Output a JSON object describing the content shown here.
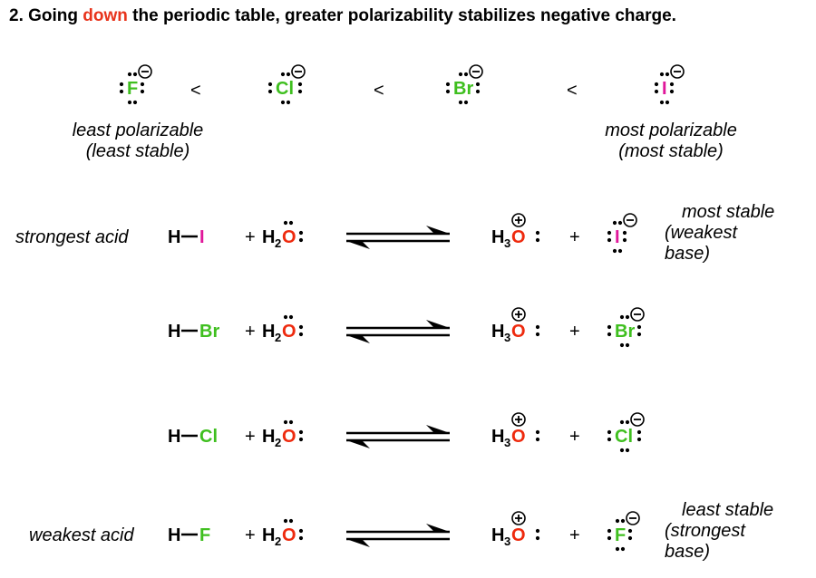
{
  "title": {
    "prefix": "2. Going ",
    "highlight": "down",
    "suffix": " the periodic table, greater polarizability stabilizes negative charge."
  },
  "colors": {
    "highlight": "#e8341c",
    "halogen": "#3fbf1f",
    "iodine": "#e0179a",
    "oxygen": "#ee2a0e",
    "ink": "#000000"
  },
  "anion_series": {
    "anions": [
      {
        "symbol": "F",
        "color_key": "halogen"
      },
      {
        "symbol": "Cl",
        "color_key": "halogen"
      },
      {
        "symbol": "Br",
        "color_key": "halogen"
      },
      {
        "symbol": "I",
        "color_key": "iodine"
      }
    ],
    "less_than": "<",
    "left_caption": [
      "least polarizable",
      "(least stable)"
    ],
    "right_caption": [
      "most polarizable",
      "(most stable)"
    ]
  },
  "reactions": [
    {
      "left_label": "strongest acid",
      "acid_h": "H",
      "halogen": "I",
      "color_key": "iodine",
      "plus1": "+",
      "water_h": "H",
      "water_sub": "2",
      "water_o": "O",
      "hydronium_h": "H",
      "hydronium_sub": "3",
      "hydronium_o": "O",
      "plus2": "+",
      "right_label": [
        "most stable",
        "(weakest",
        "base)"
      ]
    },
    {
      "left_label": "",
      "acid_h": "H",
      "halogen": "Br",
      "color_key": "halogen",
      "plus1": "+",
      "water_h": "H",
      "water_sub": "2",
      "water_o": "O",
      "hydronium_h": "H",
      "hydronium_sub": "3",
      "hydronium_o": "O",
      "plus2": "+",
      "right_label": []
    },
    {
      "left_label": "",
      "acid_h": "H",
      "halogen": "Cl",
      "color_key": "halogen",
      "plus1": "+",
      "water_h": "H",
      "water_sub": "2",
      "water_o": "O",
      "hydronium_h": "H",
      "hydronium_sub": "3",
      "hydronium_o": "O",
      "plus2": "+",
      "right_label": []
    },
    {
      "left_label": "weakest acid",
      "acid_h": "H",
      "halogen": "F",
      "color_key": "halogen",
      "plus1": "+",
      "water_h": "H",
      "water_sub": "2",
      "water_o": "O",
      "hydronium_h": "H",
      "hydronium_sub": "3",
      "hydronium_o": "O",
      "plus2": "+",
      "right_label": [
        "least stable",
        "(strongest",
        "base)"
      ]
    }
  ]
}
